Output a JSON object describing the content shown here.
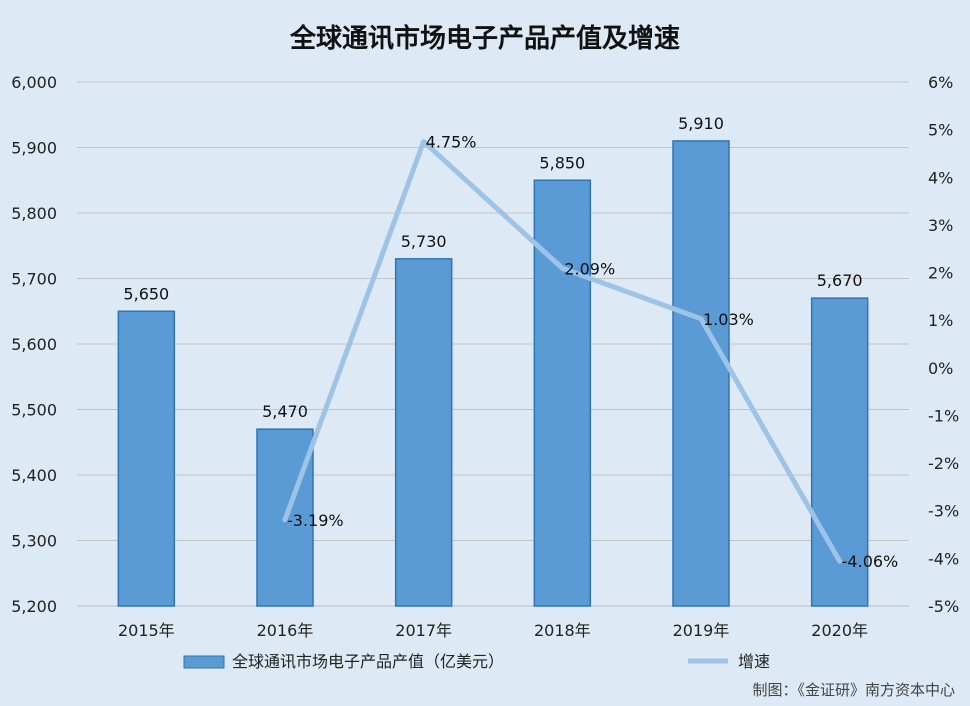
{
  "chart_data": {
    "type": "bar",
    "title": "全球通讯市场电子产品产值及增速",
    "categories": [
      "2015年",
      "2016年",
      "2017年",
      "2018年",
      "2019年",
      "2020年"
    ],
    "series": [
      {
        "name": "全球通讯市场电子产品产值（亿美元）",
        "type": "bar",
        "axis": "left",
        "values": [
          5650,
          5470,
          5730,
          5850,
          5910,
          5670
        ],
        "labels": [
          "5,650",
          "5,470",
          "5,730",
          "5,850",
          "5,910",
          "5,670"
        ],
        "color": "#5b9bd5"
      },
      {
        "name": "增速",
        "type": "line",
        "axis": "right",
        "values": [
          null,
          -3.19,
          4.75,
          2.09,
          1.03,
          -4.06
        ],
        "labels": [
          "",
          "-3.19%",
          "4.75%",
          "2.09%",
          "1.03%",
          "-4.06%"
        ],
        "color": "#9dc3e6"
      }
    ],
    "y_left": {
      "ylim": [
        5200,
        6000
      ],
      "ticks": [
        5200,
        5300,
        5400,
        5500,
        5600,
        5700,
        5800,
        5900,
        6000
      ],
      "tick_labels": [
        "5,200",
        "5,300",
        "5,400",
        "5,500",
        "5,600",
        "5,700",
        "5,800",
        "5,900",
        "6,000"
      ]
    },
    "y_right": {
      "ylim": [
        -5,
        6
      ],
      "ticks": [
        -5,
        -4,
        -3,
        -2,
        -1,
        0,
        1,
        2,
        3,
        4,
        5,
        6
      ],
      "tick_labels": [
        "-5%",
        "-4%",
        "-3%",
        "-2%",
        "-1%",
        "0%",
        "1%",
        "2%",
        "3%",
        "4%",
        "5%",
        "6%"
      ]
    },
    "grid": true,
    "legend_position": "bottom",
    "credit": "制图：《金证研》南方资本中心"
  }
}
